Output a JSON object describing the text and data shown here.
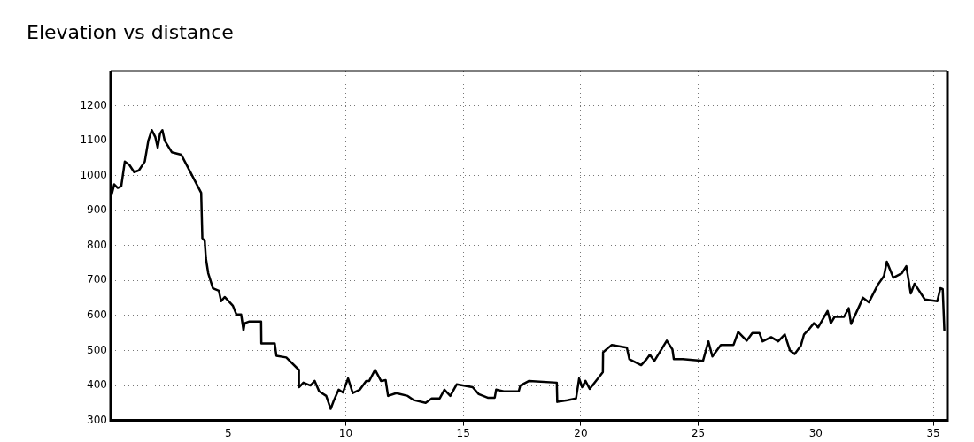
{
  "chart_data": {
    "type": "line",
    "title": "Elevation vs distance",
    "x": [
      0,
      0.15,
      0.3,
      0.45,
      0.6,
      0.8,
      1.0,
      1.2,
      1.45,
      1.5,
      1.6,
      1.75,
      1.9,
      2.0,
      2.1,
      2.2,
      2.3,
      2.6,
      3.0,
      3.85,
      3.9,
      4.0,
      4.05,
      4.15,
      4.35,
      4.6,
      4.7,
      4.85,
      5.2,
      5.35,
      5.55,
      5.65,
      5.7,
      5.9,
      6.4,
      6.41,
      6.98,
      7.05,
      7.47,
      8.0,
      8.01,
      8.2,
      8.5,
      8.68,
      8.87,
      9.17,
      9.36,
      9.5,
      9.7,
      9.88,
      10.1,
      10.3,
      10.6,
      10.87,
      11.0,
      11.25,
      11.5,
      11.7,
      11.8,
      12.15,
      12.64,
      12.9,
      13.4,
      13.66,
      14.0,
      14.2,
      14.45,
      14.72,
      15.4,
      15.66,
      16.04,
      16.34,
      16.4,
      16.72,
      17.36,
      17.43,
      17.8,
      18.98,
      19.0,
      19.43,
      19.8,
      19.93,
      20.06,
      20.2,
      20.38,
      20.94,
      20.95,
      21.32,
      21.96,
      22.07,
      22.57,
      22.8,
      22.94,
      23.13,
      23.66,
      23.9,
      23.96,
      24.34,
      25.2,
      25.43,
      25.6,
      25.96,
      26.5,
      26.7,
      27.06,
      27.3,
      27.6,
      27.74,
      28.1,
      28.4,
      28.68,
      28.9,
      29.1,
      29.36,
      29.5,
      29.74,
      29.92,
      30.1,
      30.5,
      30.64,
      30.8,
      31.2,
      31.4,
      31.5,
      31.89,
      32.0,
      32.26,
      32.64,
      32.9,
      33.02,
      33.3,
      33.66,
      33.85,
      34.04,
      34.2,
      34.64,
      35.17,
      35.3,
      35.4,
      35.47
    ],
    "values": [
      935,
      975,
      965,
      970,
      1040,
      1030,
      1010,
      1015,
      1040,
      1060,
      1100,
      1130,
      1110,
      1080,
      1120,
      1130,
      1100,
      1067,
      1060,
      951,
      821,
      814,
      764,
      721,
      678,
      671,
      641,
      653,
      628,
      603,
      603,
      558,
      578,
      583,
      583,
      520,
      520,
      485,
      480,
      445,
      395,
      408,
      400,
      413,
      383,
      370,
      333,
      358,
      388,
      380,
      420,
      378,
      388,
      413,
      413,
      445,
      413,
      415,
      370,
      378,
      370,
      358,
      350,
      363,
      363,
      388,
      370,
      403,
      395,
      375,
      365,
      365,
      388,
      383,
      383,
      400,
      413,
      408,
      353,
      358,
      363,
      420,
      395,
      413,
      390,
      438,
      495,
      516,
      508,
      475,
      458,
      475,
      488,
      470,
      528,
      503,
      475,
      475,
      470,
      526,
      483,
      516,
      516,
      553,
      528,
      550,
      550,
      526,
      538,
      526,
      546,
      500,
      490,
      513,
      546,
      563,
      578,
      566,
      613,
      578,
      596,
      596,
      621,
      576,
      633,
      651,
      638,
      688,
      713,
      754,
      708,
      721,
      741,
      663,
      691,
      646,
      641,
      678,
      676,
      558
    ],
    "color": "#000000",
    "xlim": [
      0,
      35.6
    ],
    "xticks": [
      5,
      10,
      15,
      20,
      25,
      30,
      35
    ],
    "ylim": [
      300,
      1300
    ],
    "yticks": [
      300,
      400,
      500,
      600,
      700,
      800,
      900,
      1000,
      1100,
      1200
    ],
    "grid": true,
    "legend": false,
    "marker": "none",
    "line_style": "solid"
  }
}
